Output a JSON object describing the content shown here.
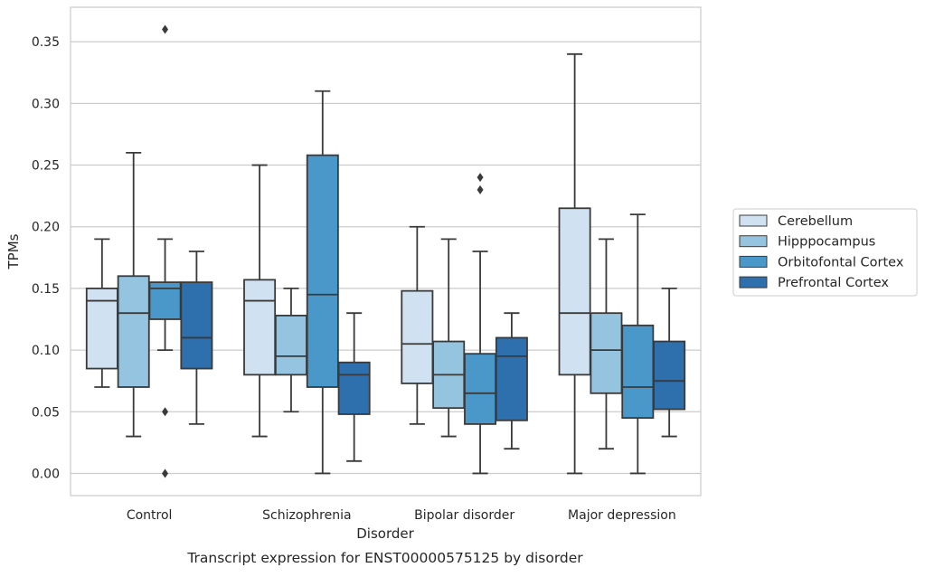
{
  "chart_data": {
    "type": "box",
    "caption": "Transcript expression for ENST00000575125 by disorder",
    "xlabel": "Disorder",
    "ylabel": "TPMs",
    "ylim": [
      -0.018,
      0.378
    ],
    "yticks": [
      0.0,
      0.05,
      0.1,
      0.15,
      0.2,
      0.25,
      0.3,
      0.35
    ],
    "ytick_labels": [
      "0.00",
      "0.05",
      "0.10",
      "0.15",
      "0.20",
      "0.25",
      "0.30",
      "0.35"
    ],
    "grid": true,
    "legend_position": "right",
    "categories": [
      "Control",
      "Schizophrenia",
      "Bipolar disorder",
      "Major depression"
    ],
    "series": [
      {
        "name": "Cerebellum",
        "color": "#d0e1f2",
        "boxes": [
          {
            "min": 0.07,
            "q1": 0.085,
            "median": 0.14,
            "q3": 0.15,
            "max": 0.19,
            "outliers": []
          },
          {
            "min": 0.03,
            "q1": 0.08,
            "median": 0.14,
            "q3": 0.157,
            "max": 0.25,
            "outliers": []
          },
          {
            "min": 0.04,
            "q1": 0.073,
            "median": 0.105,
            "q3": 0.148,
            "max": 0.2,
            "outliers": []
          },
          {
            "min": 0.0,
            "q1": 0.08,
            "median": 0.13,
            "q3": 0.215,
            "max": 0.34,
            "outliers": []
          }
        ]
      },
      {
        "name": "Hipppocampus",
        "color": "#94c4df",
        "boxes": [
          {
            "min": 0.03,
            "q1": 0.07,
            "median": 0.13,
            "q3": 0.16,
            "max": 0.26,
            "outliers": []
          },
          {
            "min": 0.05,
            "q1": 0.08,
            "median": 0.095,
            "q3": 0.128,
            "max": 0.15,
            "outliers": []
          },
          {
            "min": 0.03,
            "q1": 0.053,
            "median": 0.08,
            "q3": 0.107,
            "max": 0.19,
            "outliers": []
          },
          {
            "min": 0.02,
            "q1": 0.065,
            "median": 0.1,
            "q3": 0.13,
            "max": 0.19,
            "outliers": []
          }
        ]
      },
      {
        "name": "Orbitofontal Cortex",
        "color": "#4a98c9",
        "boxes": [
          {
            "min": 0.1,
            "q1": 0.125,
            "median": 0.15,
            "q3": 0.155,
            "max": 0.19,
            "outliers": [
              0.36,
              0.05,
              0.0
            ]
          },
          {
            "min": 0.0,
            "q1": 0.07,
            "median": 0.145,
            "q3": 0.258,
            "max": 0.31,
            "outliers": []
          },
          {
            "min": 0.0,
            "q1": 0.04,
            "median": 0.065,
            "q3": 0.097,
            "max": 0.18,
            "outliers": [
              0.24,
              0.23
            ]
          },
          {
            "min": 0.0,
            "q1": 0.045,
            "median": 0.07,
            "q3": 0.12,
            "max": 0.21,
            "outliers": []
          }
        ]
      },
      {
        "name": "Prefrontal Cortex",
        "color": "#2e6fae",
        "boxes": [
          {
            "min": 0.04,
            "q1": 0.085,
            "median": 0.11,
            "q3": 0.155,
            "max": 0.18,
            "outliers": []
          },
          {
            "min": 0.01,
            "q1": 0.048,
            "median": 0.08,
            "q3": 0.09,
            "max": 0.13,
            "outliers": []
          },
          {
            "min": 0.02,
            "q1": 0.043,
            "median": 0.095,
            "q3": 0.11,
            "max": 0.13,
            "outliers": []
          },
          {
            "min": 0.03,
            "q1": 0.052,
            "median": 0.075,
            "q3": 0.107,
            "max": 0.15,
            "outliers": []
          }
        ]
      }
    ]
  }
}
